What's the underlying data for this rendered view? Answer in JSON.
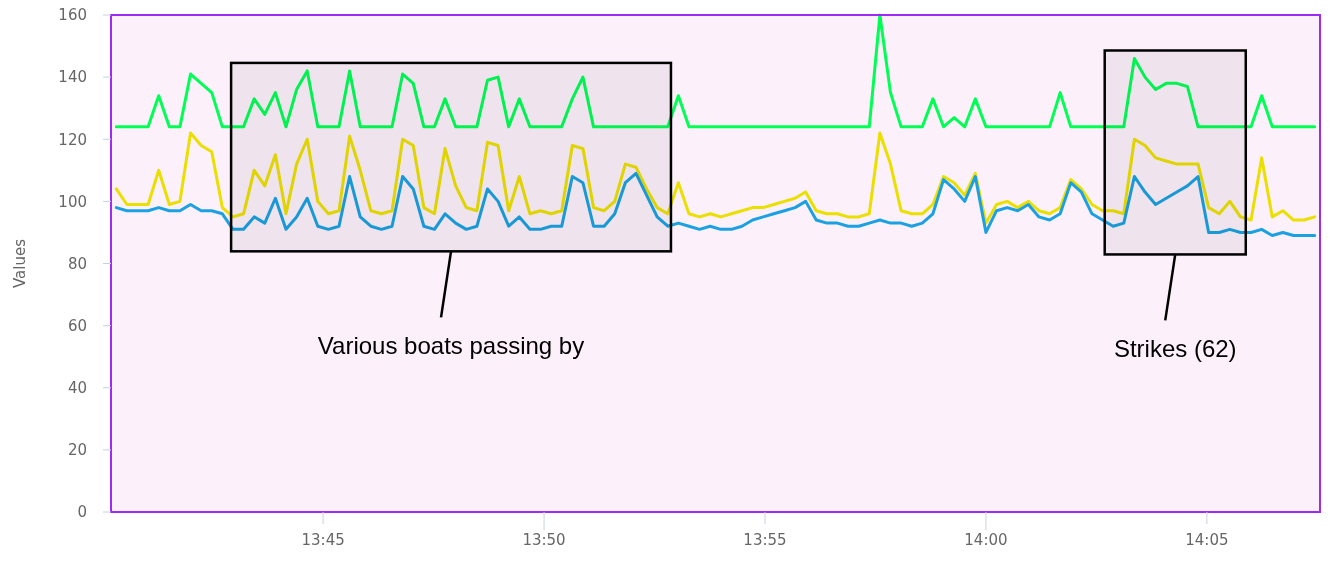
{
  "chart_data": {
    "type": "line",
    "ylabel": "Values",
    "x": [
      13.672,
      13.676,
      13.68,
      13.684,
      13.688,
      13.692,
      13.696,
      13.7,
      13.704,
      13.708,
      13.712,
      13.716,
      13.72,
      13.724,
      13.728,
      13.732,
      13.736,
      13.74,
      13.744,
      13.748,
      13.752,
      13.756,
      13.76,
      13.764,
      13.768,
      13.772,
      13.776,
      13.78,
      13.784,
      13.788,
      13.792,
      13.796,
      13.8,
      13.804,
      13.808,
      13.812,
      13.816,
      13.82,
      13.824,
      13.828,
      13.832,
      13.836,
      13.84,
      13.844,
      13.848,
      13.852,
      13.856,
      13.86,
      13.864,
      13.868,
      13.872,
      13.876,
      13.88,
      13.884,
      13.888,
      13.892,
      13.896,
      13.9,
      13.904,
      13.908,
      13.912,
      13.916,
      13.92,
      13.924,
      13.928,
      13.932,
      13.936,
      13.94,
      13.944,
      13.948,
      13.952,
      13.956,
      13.96,
      13.964,
      13.968,
      13.972,
      13.976,
      13.98,
      13.984,
      13.988,
      13.992,
      13.996,
      14.0,
      14.004,
      14.008,
      14.012,
      14.016,
      14.02,
      14.024,
      14.028,
      14.032,
      14.036,
      14.04,
      14.044,
      14.048,
      14.052,
      14.056,
      14.06,
      14.064,
      14.068,
      14.072,
      14.076,
      14.08,
      14.084,
      14.088,
      14.092,
      14.096,
      14.1,
      14.104,
      14.108,
      14.112,
      14.116,
      14.12,
      14.124
    ],
    "series": [
      {
        "color": "#00ff55",
        "values": [
          124,
          124,
          124,
          124,
          134,
          124,
          124,
          141,
          138,
          135,
          124,
          124,
          124,
          133,
          128,
          135,
          124,
          136,
          142,
          124,
          124,
          124,
          142,
          124,
          124,
          124,
          124,
          141,
          138,
          124,
          124,
          133,
          124,
          124,
          124,
          139,
          140,
          124,
          133,
          124,
          124,
          124,
          124,
          133,
          140,
          124,
          124,
          124,
          124,
          124,
          124,
          124,
          124,
          134,
          124,
          124,
          124,
          124,
          124,
          124,
          124,
          124,
          124,
          124,
          124,
          124,
          124,
          124,
          124,
          124,
          124,
          124,
          160,
          135,
          124,
          124,
          124,
          133,
          124,
          127,
          124,
          133,
          124,
          124,
          124,
          124,
          124,
          124,
          124,
          135,
          124,
          124,
          124,
          124,
          124,
          124,
          146,
          140,
          136,
          138,
          138,
          137,
          124,
          124,
          124,
          124,
          124,
          124,
          134,
          124,
          124,
          124,
          124,
          124
        ]
      },
      {
        "color": "#ebdf00",
        "values": [
          104,
          99,
          99,
          99,
          110,
          99,
          100,
          122,
          118,
          116,
          98,
          95,
          96,
          110,
          105,
          115,
          96,
          112,
          120,
          100,
          96,
          97,
          121,
          110,
          97,
          96,
          97,
          120,
          118,
          98,
          96,
          117,
          105,
          98,
          97,
          119,
          118,
          97,
          108,
          96,
          97,
          96,
          97,
          118,
          117,
          98,
          97,
          100,
          112,
          111,
          104,
          98,
          96,
          106,
          96,
          95,
          96,
          95,
          96,
          97,
          98,
          98,
          99,
          100,
          101,
          103,
          97,
          96,
          96,
          95,
          95,
          96,
          122,
          112,
          97,
          96,
          96,
          99,
          108,
          106,
          102,
          109,
          93,
          99,
          100,
          98,
          100,
          97,
          96,
          98,
          107,
          104,
          99,
          97,
          97,
          96,
          120,
          118,
          114,
          113,
          112,
          112,
          112,
          98,
          96,
          100,
          95,
          94,
          114,
          95,
          97,
          94,
          94,
          95
        ]
      },
      {
        "color": "#1ba1e2",
        "values": [
          98,
          97,
          97,
          97,
          98,
          97,
          97,
          99,
          97,
          97,
          96,
          91,
          91,
          95,
          93,
          101,
          91,
          95,
          101,
          92,
          91,
          92,
          108,
          95,
          92,
          91,
          92,
          108,
          104,
          92,
          91,
          96,
          93,
          91,
          92,
          104,
          100,
          92,
          95,
          91,
          91,
          92,
          92,
          108,
          106,
          92,
          92,
          96,
          106,
          109,
          102,
          95,
          92,
          93,
          92,
          91,
          92,
          91,
          91,
          92,
          94,
          95,
          96,
          97,
          98,
          100,
          94,
          93,
          93,
          92,
          92,
          93,
          94,
          93,
          93,
          92,
          93,
          96,
          107,
          104,
          100,
          108,
          90,
          97,
          98,
          97,
          99,
          95,
          94,
          96,
          106,
          103,
          96,
          94,
          92,
          93,
          108,
          103,
          99,
          101,
          103,
          105,
          108,
          90,
          90,
          91,
          90,
          90,
          91,
          89,
          90,
          89,
          89,
          89
        ]
      }
    ],
    "xlim": [
      13.67,
      14.126
    ],
    "xticks": [
      {
        "value": 13.75,
        "label": "13:45"
      },
      {
        "value": 13.833333,
        "label": "13:50"
      },
      {
        "value": 13.916667,
        "label": "13:55"
      },
      {
        "value": 14.0,
        "label": "14:00"
      },
      {
        "value": 14.083333,
        "label": "14:05"
      }
    ],
    "ylim": [
      0,
      160
    ],
    "yticks": [
      0,
      20,
      40,
      60,
      80,
      100,
      120,
      140,
      160
    ],
    "bands": [
      {
        "axis": "x",
        "from": 13.7153,
        "to": 13.8812,
        "label": "Various boats passing by",
        "color": "#000000"
      },
      {
        "axis": "x",
        "from": 14.0448,
        "to": 14.098,
        "label": "Strikes (62)",
        "color": "#000000"
      }
    ],
    "grid": false,
    "marker": "none",
    "line_style": "solid"
  }
}
